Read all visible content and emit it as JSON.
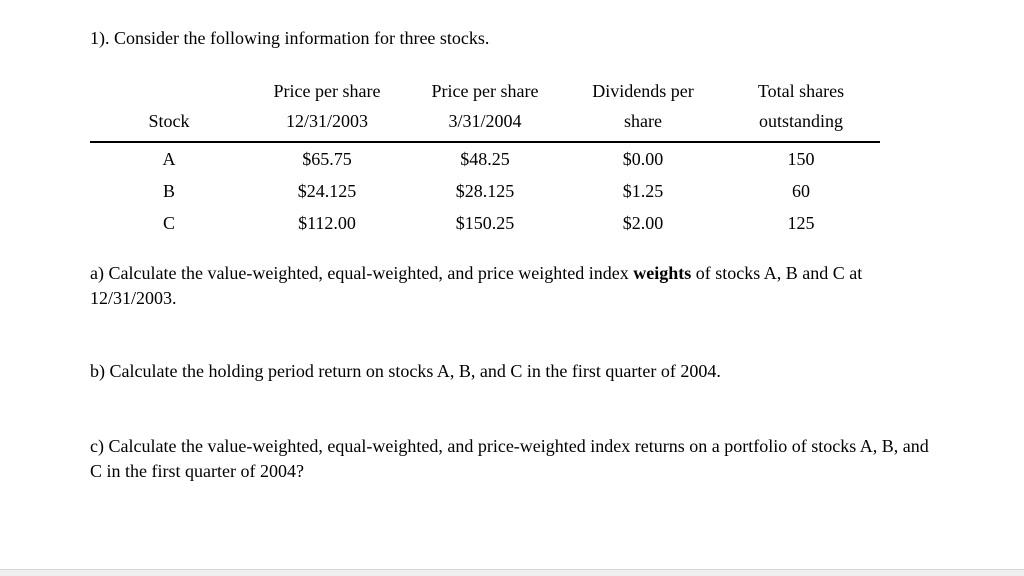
{
  "page": {
    "title": "1). Consider the following information for three stocks.",
    "table": {
      "headers": [
        {
          "line1": "",
          "line2": "Stock"
        },
        {
          "line1": "Price per share",
          "line2": "12/31/2003"
        },
        {
          "line1": "Price per share",
          "line2": "3/31/2004"
        },
        {
          "line1": "Dividends per",
          "line2": "share"
        },
        {
          "line1": "Total shares",
          "line2": "outstanding"
        }
      ],
      "rows": [
        {
          "stock": "A",
          "price_2003": "$65.75",
          "price_2004": "$48.25",
          "dividends": "$0.00",
          "shares": "150"
        },
        {
          "stock": "B",
          "price_2003": "$24.125",
          "price_2004": "$28.125",
          "dividends": "$1.25",
          "shares": "60"
        },
        {
          "stock": "C",
          "price_2003": "$112.00",
          "price_2004": "$150.25",
          "dividends": "$2.00",
          "shares": "125"
        }
      ]
    },
    "questions": {
      "a_prefix": "a) Calculate the value-weighted, equal-weighted, and price weighted index ",
      "a_bold": "weights",
      "a_suffix": " of stocks A, B and C at 12/31/2003.",
      "b": "b) Calculate the holding period return on stocks A, B, and C in the first quarter of 2004.",
      "c": "c) Calculate the value-weighted, equal-weighted, and price-weighted index returns on a portfolio of stocks A, B, and C in the first quarter of 2004?"
    }
  }
}
